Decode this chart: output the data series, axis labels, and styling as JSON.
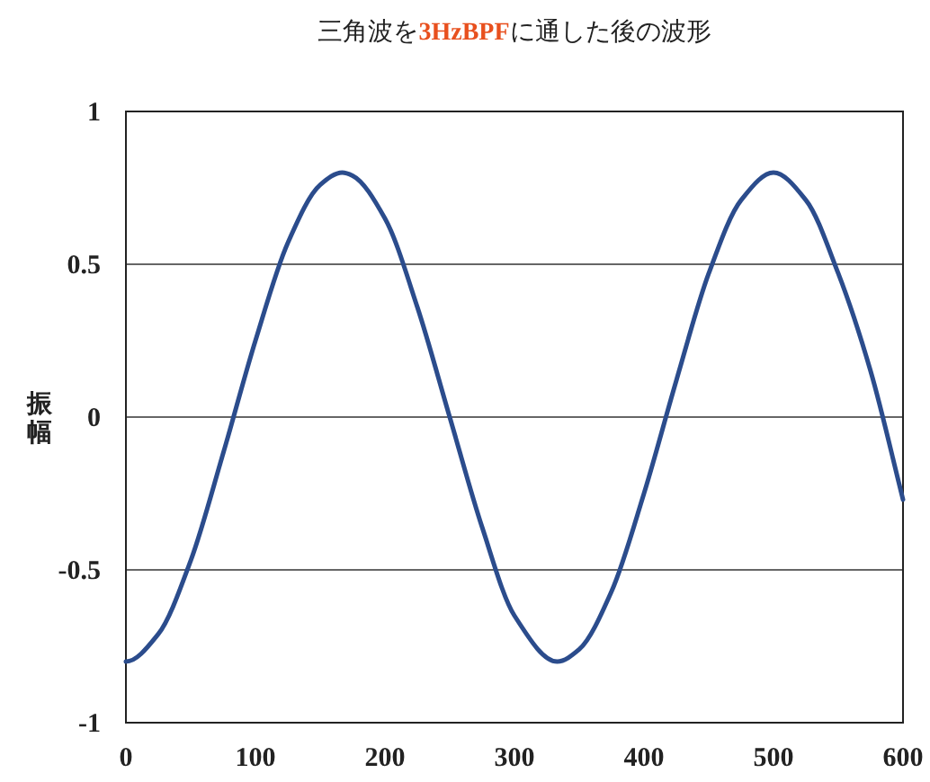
{
  "chart_data": {
    "type": "line",
    "title": "三角波を**3HzBPF**に通した後の波形",
    "ylabel": "振幅",
    "x": [
      0,
      25,
      50,
      75,
      100,
      125,
      150,
      167,
      175,
      200,
      225,
      250,
      275,
      300,
      333,
      350,
      375,
      400,
      425,
      450,
      475,
      500,
      525,
      550,
      575,
      600
    ],
    "series": [
      {
        "color": "#2b4c8c",
        "values": [
          -0.8,
          -0.71,
          -0.47,
          -0.12,
          0.25,
          0.57,
          0.76,
          0.8,
          0.79,
          0.65,
          0.36,
          0,
          -0.36,
          -0.65,
          -0.8,
          -0.76,
          -0.57,
          -0.25,
          0.12,
          0.47,
          0.71,
          0.8,
          0.71,
          0.47,
          0.15,
          -0.27
        ]
      }
    ],
    "xlim": [
      0,
      600
    ],
    "ylim": [
      -1,
      1
    ],
    "xticks": [
      0,
      100,
      200,
      300,
      400,
      500,
      600
    ],
    "yticks": [
      -1,
      -0.5,
      0,
      0.5,
      1
    ],
    "grid": "y"
  }
}
